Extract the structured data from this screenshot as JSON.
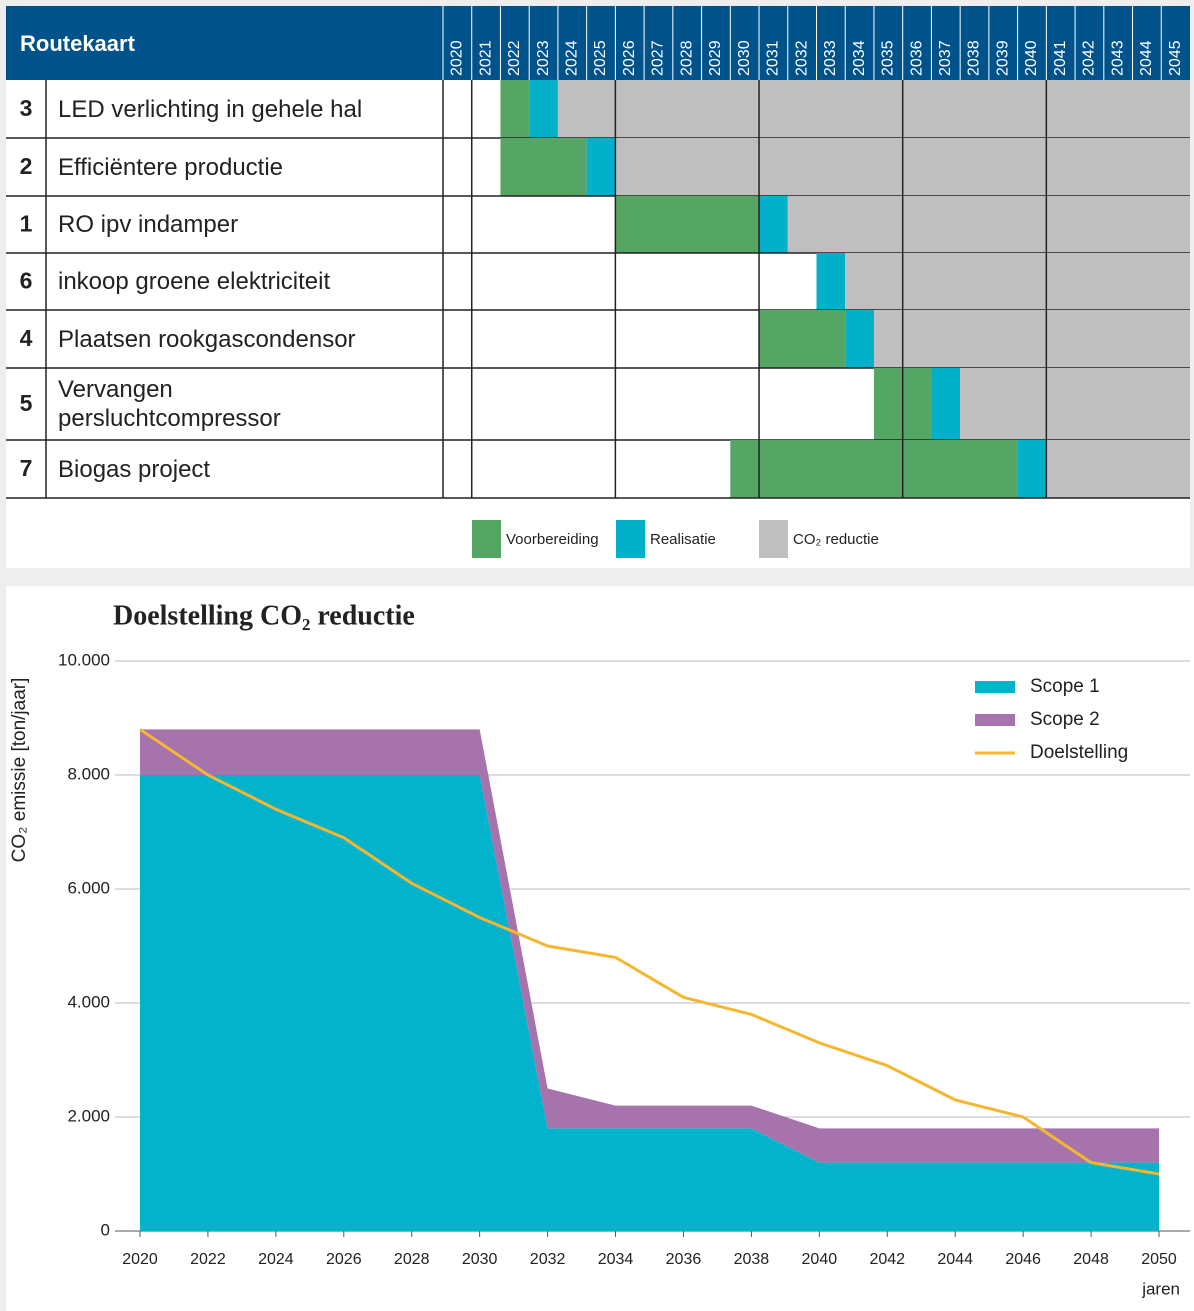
{
  "chart_data": [
    {
      "type": "gantt",
      "title": "Routekaart",
      "years": [
        2020,
        2021,
        2022,
        2023,
        2024,
        2025,
        2026,
        2027,
        2028,
        2029,
        2030,
        2031,
        2032,
        2033,
        2034,
        2035,
        2036,
        2037,
        2038,
        2039,
        2040,
        2041,
        2042,
        2043,
        2044,
        2045
      ],
      "phases": [
        {
          "name": "Voorbereiding",
          "color": "#55a664"
        },
        {
          "name": "Realisatie",
          "color": "#03b0ca"
        },
        {
          "name": "CO₂ reductie",
          "color": "#bfbfbf"
        }
      ],
      "tasks": [
        {
          "id": 3,
          "name": "LED verlichting in gehele hal",
          "phases": [
            [
              2022,
              2022
            ],
            [
              2023,
              2023
            ],
            [
              2024,
              2045
            ]
          ]
        },
        {
          "id": 2,
          "name": "Efficiëntere productie",
          "phases": [
            [
              2022,
              2024
            ],
            [
              2025,
              2025
            ],
            [
              2026,
              2045
            ]
          ]
        },
        {
          "id": 1,
          "name": "RO ipv indamper",
          "phases": [
            [
              2026,
              2030
            ],
            [
              2031,
              2031
            ],
            [
              2032,
              2045
            ]
          ]
        },
        {
          "id": 6,
          "name": "inkoop groene elektriciteit",
          "phases": [
            null,
            [
              2033,
              2033
            ],
            [
              2034,
              2045
            ]
          ]
        },
        {
          "id": 4,
          "name": "Plaatsen rookgascondensor",
          "phases": [
            [
              2031,
              2033
            ],
            [
              2034,
              2034
            ],
            [
              2035,
              2045
            ]
          ]
        },
        {
          "id": 5,
          "name": "Vervangen persluchtcompressor",
          "phases": [
            [
              2035,
              2036
            ],
            [
              2037,
              2037
            ],
            [
              2038,
              2045
            ]
          ]
        },
        {
          "id": 7,
          "name": "Biogas project",
          "phases": [
            [
              2030,
              2039
            ],
            [
              2040,
              2040
            ],
            [
              2041,
              2045
            ]
          ]
        }
      ]
    },
    {
      "type": "area",
      "title": "Doelstelling CO₂ reductie",
      "ylabel": "CO₂ emissie [ton/jaar]",
      "xlabel": "jaren",
      "x": [
        2020,
        2022,
        2024,
        2026,
        2028,
        2030,
        2032,
        2034,
        2036,
        2038,
        2040,
        2042,
        2044,
        2046,
        2048,
        2050
      ],
      "xlim": [
        2020,
        2050
      ],
      "xticks": [
        2020,
        2022,
        2024,
        2026,
        2028,
        2030,
        2032,
        2034,
        2036,
        2038,
        2040,
        2042,
        2044,
        2046,
        2048,
        2050
      ],
      "ylim": [
        0,
        10000
      ],
      "yticks": [
        0,
        {
          "value": 2000,
          "label": "2.000"
        },
        {
          "value": 4000,
          "label": "4.000"
        },
        {
          "value": 6000,
          "label": "6.000"
        },
        {
          "value": 8000,
          "label": "8.000"
        },
        {
          "value": 10000,
          "label": "10.000"
        }
      ],
      "grid": true,
      "legend": "upper right",
      "series": [
        {
          "name": "Scope 1",
          "type": "area",
          "color": "#03b3cc",
          "values": [
            8000,
            8000,
            8000,
            8000,
            8000,
            8000,
            1800,
            1800,
            1800,
            1800,
            1200,
            1200,
            1200,
            1200,
            1200,
            1200
          ]
        },
        {
          "name": "Scope 2",
          "type": "area",
          "color": "#a673ac",
          "values": [
            800,
            800,
            800,
            800,
            800,
            800,
            700,
            400,
            400,
            400,
            600,
            600,
            600,
            600,
            600,
            600
          ]
        },
        {
          "name": "Doelstelling",
          "type": "line",
          "color": "#f5b731",
          "values": [
            8800,
            8000,
            7400,
            6900,
            6100,
            5500,
            5000,
            4800,
            4100,
            3800,
            3300,
            2900,
            2300,
            2000,
            1200,
            1000
          ]
        }
      ]
    }
  ]
}
